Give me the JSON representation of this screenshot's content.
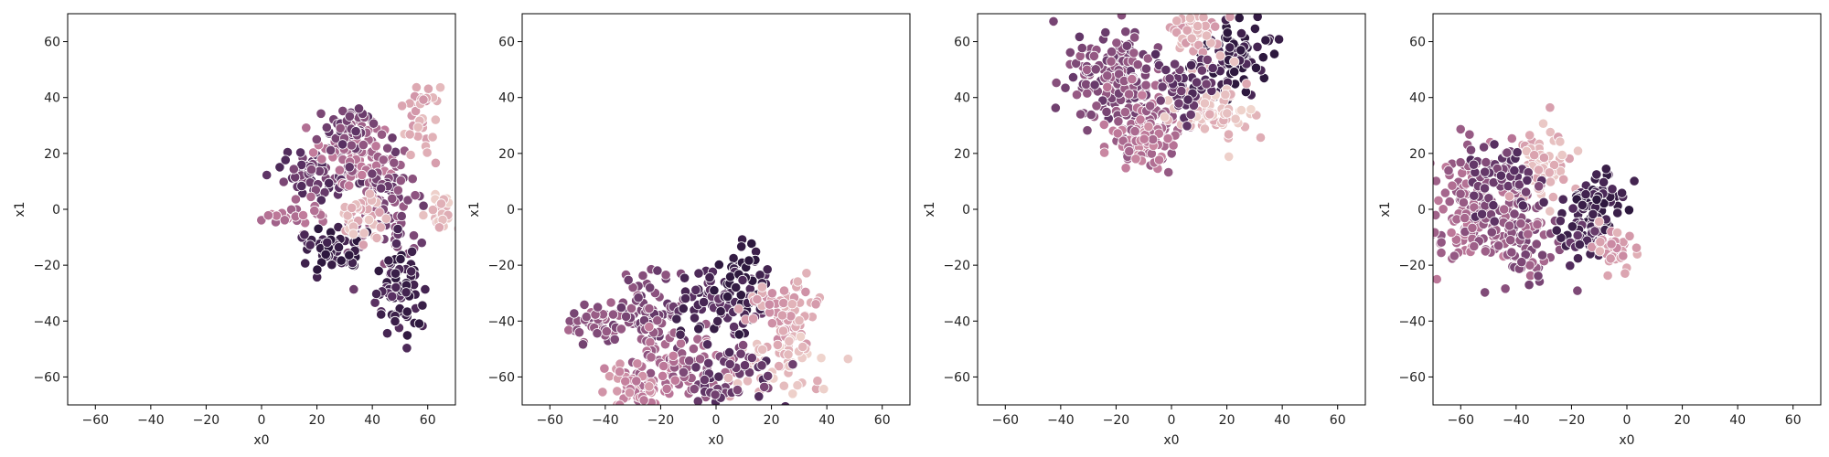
{
  "chart_data": [
    {
      "type": "scatter",
      "xlabel": "x0",
      "ylabel": "x1",
      "xlim": [
        -70,
        70
      ],
      "ylim": [
        -70,
        70
      ],
      "xticks": [
        -60,
        -40,
        -20,
        0,
        20,
        40,
        60
      ],
      "yticks": [
        -60,
        -40,
        -20,
        0,
        20,
        40,
        60
      ],
      "xtick_labels": [
        "−60",
        "−40",
        "−20",
        "0",
        "20",
        "40",
        "60"
      ],
      "ytick_labels": [
        "−60",
        "−40",
        "−20",
        "0",
        "20",
        "40",
        "60"
      ],
      "grid": false,
      "clusters": [
        {
          "cx": 20,
          "cy": 12,
          "sx": 8,
          "sy": 4,
          "n": 70,
          "hue": 0.75
        },
        {
          "cx": 35,
          "cy": 18,
          "sx": 6,
          "sy": 8,
          "n": 80,
          "hue": 0.5
        },
        {
          "cx": 45,
          "cy": 0,
          "sx": 6,
          "sy": 10,
          "n": 80,
          "hue": 0.65
        },
        {
          "cx": 12,
          "cy": -2,
          "sx": 7,
          "sy": 3,
          "n": 30,
          "hue": 0.45
        },
        {
          "cx": 25,
          "cy": -15,
          "sx": 6,
          "sy": 4,
          "n": 50,
          "hue": 0.95
        },
        {
          "cx": 50,
          "cy": -30,
          "sx": 4,
          "sy": 9,
          "n": 70,
          "hue": 0.9
        },
        {
          "cx": 58,
          "cy": 32,
          "sx": 3,
          "sy": 7,
          "n": 40,
          "hue": 0.2
        },
        {
          "cx": 35,
          "cy": -3,
          "sx": 5,
          "sy": 4,
          "n": 40,
          "hue": 0.15
        },
        {
          "cx": 66,
          "cy": 0,
          "sx": 3,
          "sy": 4,
          "n": 25,
          "hue": 0.1
        },
        {
          "cx": 30,
          "cy": 28,
          "sx": 5,
          "sy": 5,
          "n": 40,
          "hue": 0.7
        }
      ]
    },
    {
      "type": "scatter",
      "xlabel": "x0",
      "ylabel": "x1",
      "xlim": [
        -70,
        70
      ],
      "ylim": [
        -70,
        70
      ],
      "xticks": [
        -60,
        -40,
        -20,
        0,
        20,
        40,
        60
      ],
      "yticks": [
        -60,
        -40,
        -20,
        0,
        20,
        40,
        60
      ],
      "xtick_labels": [
        "−60",
        "−40",
        "−20",
        "0",
        "20",
        "40",
        "60"
      ],
      "ytick_labels": [
        "−60",
        "−40",
        "−20",
        "0",
        "20",
        "40",
        "60"
      ],
      "grid": false,
      "clusters": [
        {
          "cx": -45,
          "cy": -40,
          "sx": 6,
          "sy": 4,
          "n": 40,
          "hue": 0.6
        },
        {
          "cx": -25,
          "cy": -38,
          "sx": 8,
          "sy": 7,
          "n": 80,
          "hue": 0.65
        },
        {
          "cx": -15,
          "cy": -55,
          "sx": 9,
          "sy": 7,
          "n": 90,
          "hue": 0.5
        },
        {
          "cx": 0,
          "cy": -35,
          "sx": 8,
          "sy": 6,
          "n": 70,
          "hue": 0.85
        },
        {
          "cx": 10,
          "cy": -28,
          "sx": 4,
          "sy": 8,
          "n": 50,
          "hue": 0.95
        },
        {
          "cx": 25,
          "cy": -37,
          "sx": 8,
          "sy": 6,
          "n": 70,
          "hue": 0.25
        },
        {
          "cx": 25,
          "cy": -55,
          "sx": 7,
          "sy": 6,
          "n": 60,
          "hue": 0.1
        },
        {
          "cx": 5,
          "cy": -60,
          "sx": 8,
          "sy": 6,
          "n": 60,
          "hue": 0.75
        },
        {
          "cx": -30,
          "cy": -65,
          "sx": 6,
          "sy": 4,
          "n": 40,
          "hue": 0.35
        }
      ]
    },
    {
      "type": "scatter",
      "xlabel": "x0",
      "ylabel": "x1",
      "xlim": [
        -70,
        70
      ],
      "ylim": [
        -70,
        70
      ],
      "xticks": [
        -60,
        -40,
        -20,
        0,
        20,
        40,
        60
      ],
      "yticks": [
        -60,
        -40,
        -20,
        0,
        20,
        40,
        60
      ],
      "xtick_labels": [
        "−60",
        "−40",
        "−20",
        "0",
        "20",
        "40",
        "60"
      ],
      "ytick_labels": [
        "−60",
        "−40",
        "−20",
        "0",
        "20",
        "40",
        "60"
      ],
      "grid": false,
      "clusters": [
        {
          "cx": -20,
          "cy": 45,
          "sx": 9,
          "sy": 9,
          "n": 160,
          "hue": 0.65
        },
        {
          "cx": -8,
          "cy": 32,
          "sx": 7,
          "sy": 8,
          "n": 80,
          "hue": 0.5
        },
        {
          "cx": 22,
          "cy": 55,
          "sx": 7,
          "sy": 7,
          "n": 90,
          "hue": 0.95
        },
        {
          "cx": 8,
          "cy": 63,
          "sx": 5,
          "sy": 4,
          "n": 40,
          "hue": 0.2
        },
        {
          "cx": 15,
          "cy": 35,
          "sx": 8,
          "sy": 6,
          "n": 70,
          "hue": 0.1
        },
        {
          "cx": 5,
          "cy": 45,
          "sx": 5,
          "sy": 6,
          "n": 50,
          "hue": 0.8
        },
        {
          "cx": -10,
          "cy": 22,
          "sx": 6,
          "sy": 4,
          "n": 40,
          "hue": 0.4
        }
      ]
    },
    {
      "type": "scatter",
      "xlabel": "x0",
      "ylabel": "x1",
      "xlim": [
        -70,
        70
      ],
      "ylim": [
        -70,
        70
      ],
      "xticks": [
        -60,
        -40,
        -20,
        0,
        20,
        40,
        60
      ],
      "yticks": [
        -60,
        -40,
        -20,
        0,
        20,
        40,
        60
      ],
      "xtick_labels": [
        "−60",
        "−40",
        "−20",
        "0",
        "20",
        "40",
        "60"
      ],
      "ytick_labels": [
        "−60",
        "−40",
        "−20",
        "0",
        "20",
        "40",
        "60"
      ],
      "grid": false,
      "clusters": [
        {
          "cx": -55,
          "cy": 0,
          "sx": 9,
          "sy": 11,
          "n": 130,
          "hue": 0.5
        },
        {
          "cx": -40,
          "cy": -10,
          "sx": 9,
          "sy": 8,
          "n": 110,
          "hue": 0.6
        },
        {
          "cx": -30,
          "cy": 15,
          "sx": 6,
          "sy": 6,
          "n": 70,
          "hue": 0.15
        },
        {
          "cx": -10,
          "cy": 3,
          "sx": 5,
          "sy": 5,
          "n": 60,
          "hue": 0.95
        },
        {
          "cx": -15,
          "cy": -10,
          "sx": 5,
          "sy": 5,
          "n": 50,
          "hue": 0.85
        },
        {
          "cx": -5,
          "cy": -13,
          "sx": 5,
          "sy": 4,
          "n": 40,
          "hue": 0.25
        },
        {
          "cx": -45,
          "cy": 10,
          "sx": 7,
          "sy": 6,
          "n": 60,
          "hue": 0.75
        }
      ]
    }
  ]
}
